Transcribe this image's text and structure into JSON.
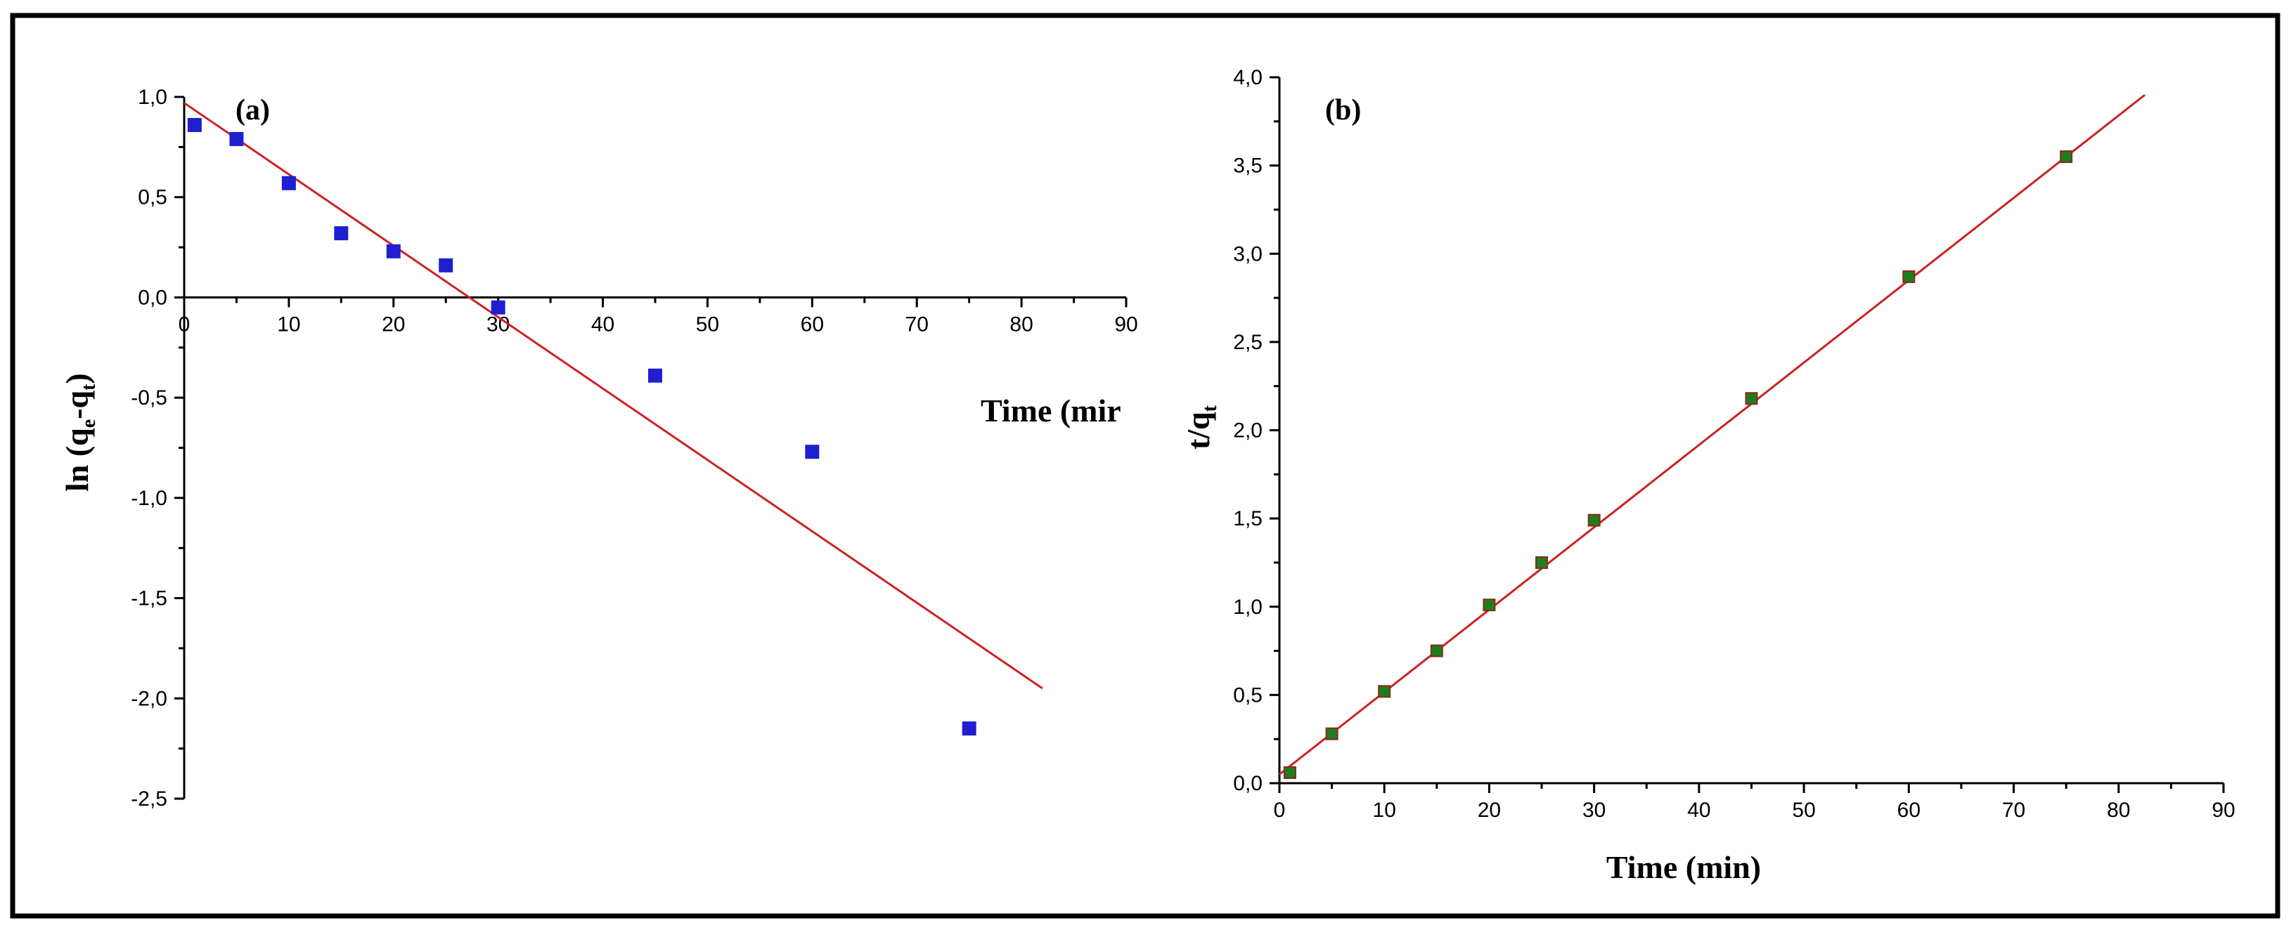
{
  "colors": {
    "frame": "#000000",
    "fit_line": "#cc2222",
    "points_a": "#1f1fd0",
    "points_b": "#1e7d1e",
    "points_b_edge": "#8b2a1a"
  },
  "chart_data": [
    {
      "type": "scatter",
      "panel_label": "(a)",
      "title": "",
      "xlabel": "Time (mir",
      "ylabel_parts": {
        "main": "ln (q",
        "sub1": "e",
        "mid": "-q",
        "sub2": "t",
        "end": ")"
      },
      "xlim": [
        0,
        90
      ],
      "ylim": [
        -2.5,
        1.0
      ],
      "xticks": [
        0,
        10,
        20,
        30,
        40,
        50,
        60,
        70,
        80,
        90
      ],
      "xtick_labels": [
        "0",
        "10",
        "20",
        "30",
        "40",
        "50",
        "60",
        "70",
        "80",
        "90"
      ],
      "yticks": [
        1.0,
        0.5,
        0.0,
        -0.5,
        -1.0,
        -1.5,
        -2.0,
        -2.5
      ],
      "ytick_labels": [
        "1,0",
        "0,5",
        "0,0",
        "-0,5",
        "-1,0",
        "-1,5",
        "-2,0",
        "-2,5"
      ],
      "grid": false,
      "series": [
        {
          "kind": "points",
          "x": [
            1,
            5,
            10,
            15,
            20,
            25,
            30,
            45,
            60,
            75
          ],
          "y": [
            0.86,
            0.79,
            0.57,
            0.32,
            0.23,
            0.16,
            -0.05,
            -0.39,
            -0.77,
            -2.15
          ]
        },
        {
          "kind": "fit-line",
          "x": [
            0,
            82
          ],
          "y": [
            0.97,
            -1.95
          ]
        }
      ]
    },
    {
      "type": "scatter",
      "panel_label": "(b)",
      "title": "",
      "xlabel": "Time (min)",
      "ylabel_parts": {
        "main": "t/q",
        "sub1": "t"
      },
      "xlim": [
        0,
        90
      ],
      "ylim": [
        0.0,
        4.0
      ],
      "xticks": [
        0,
        10,
        20,
        30,
        40,
        50,
        60,
        70,
        80,
        90
      ],
      "xtick_labels": [
        "0",
        "10",
        "20",
        "30",
        "40",
        "50",
        "60",
        "70",
        "80",
        "90"
      ],
      "yticks": [
        0.0,
        0.5,
        1.0,
        1.5,
        2.0,
        2.5,
        3.0,
        3.5,
        4.0
      ],
      "ytick_labels": [
        "0,0",
        "0,5",
        "1,0",
        "1,5",
        "2,0",
        "2,5",
        "3,0",
        "3,5",
        "4,0"
      ],
      "grid": false,
      "series": [
        {
          "kind": "points",
          "x": [
            1,
            5,
            10,
            15,
            20,
            25,
            30,
            45,
            60,
            75
          ],
          "y": [
            0.06,
            0.28,
            0.52,
            0.75,
            1.01,
            1.25,
            1.49,
            2.18,
            2.87,
            3.55
          ]
        },
        {
          "kind": "fit-line",
          "x": [
            0,
            82.5
          ],
          "y": [
            0.05,
            3.9
          ]
        }
      ]
    }
  ]
}
